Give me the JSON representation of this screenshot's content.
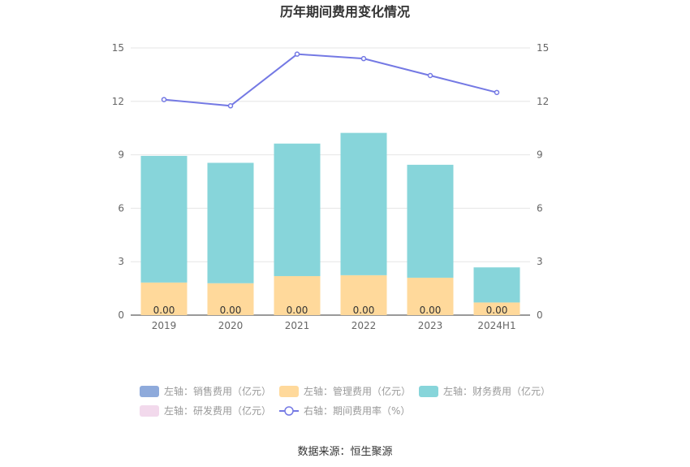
{
  "chart_data": {
    "type": "bar",
    "stacked": true,
    "title": "历年期间费用变化情况",
    "categories": [
      "2019",
      "2020",
      "2021",
      "2022",
      "2023",
      "2024H1"
    ],
    "y_left": {
      "min": 0,
      "max": 15,
      "ticks": [
        0,
        3,
        6,
        9,
        12,
        15
      ]
    },
    "y_right": {
      "min": 0,
      "max": 15,
      "ticks": [
        0,
        3,
        6,
        9,
        12,
        15
      ]
    },
    "series": [
      {
        "name": "左轴：销售费用（亿元）",
        "axis": "left",
        "kind": "bar",
        "color": "#8eaadb",
        "values": [
          0.0,
          0.0,
          0.0,
          0.0,
          0.0,
          0.0
        ]
      },
      {
        "name": "左轴：管理费用（亿元）",
        "axis": "left",
        "kind": "bar",
        "color": "#ffd99b",
        "values": [
          1.83,
          1.79,
          2.19,
          2.24,
          2.1,
          0.71
        ]
      },
      {
        "name": "左轴：财务费用（亿元）",
        "axis": "left",
        "kind": "bar",
        "color": "#87d5da",
        "values": [
          7.11,
          6.76,
          7.44,
          7.99,
          6.34,
          1.97
        ]
      },
      {
        "name": "左轴：研发费用（亿元）",
        "axis": "left",
        "kind": "bar",
        "color": "#f2d9ec",
        "values": [
          0.0,
          0.0,
          0.0,
          0.0,
          0.0,
          0.0
        ]
      },
      {
        "name": "右轴：期间费用率（%）",
        "axis": "right",
        "kind": "line",
        "color": "#7479e4",
        "values": [
          12.1,
          11.75,
          14.65,
          14.4,
          13.45,
          12.5
        ]
      }
    ],
    "data_labels": [
      "0.00",
      "0.00",
      "0.00",
      "0.00",
      "0.00",
      "0.00"
    ],
    "legend_position": "bottom",
    "grid": true
  },
  "source": "数据来源：恒生聚源"
}
